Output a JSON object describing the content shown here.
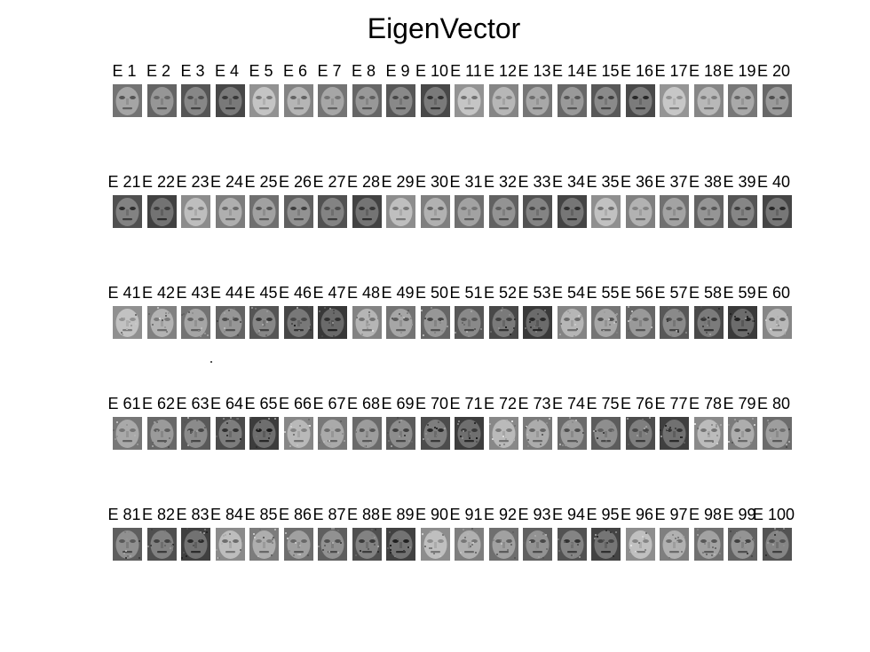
{
  "figure": {
    "title": "EigenVector",
    "label_prefix": "E ",
    "rows": 5,
    "columns": 20,
    "count": 100
  },
  "labels": [
    "E 1",
    "E 2",
    "E 3",
    "E 4",
    "E 5",
    "E 6",
    "E 7",
    "E 8",
    "E 9",
    "E 10",
    "E 11",
    "E 12",
    "E 13",
    "E 14",
    "E 15",
    "E 16",
    "E 17",
    "E 18",
    "E 19",
    "E 20",
    "E 21",
    "E 22",
    "E 23",
    "E 24",
    "E 25",
    "E 26",
    "E 27",
    "E 28",
    "E 29",
    "E 30",
    "E 31",
    "E 32",
    "E 33",
    "E 34",
    "E 35",
    "E 36",
    "E 37",
    "E 38",
    "E 39",
    "E 40",
    "E 41",
    "E 42",
    "E 43",
    "E 44",
    "E 45",
    "E 46",
    "E 47",
    "E 48",
    "E 49",
    "E 50",
    "E 51",
    "E 52",
    "E 53",
    "E 54",
    "E 55",
    "E 56",
    "E 57",
    "E 58",
    "E 59",
    "E 60",
    "E 61",
    "E 62",
    "E 63",
    "E 64",
    "E 65",
    "E 66",
    "E 67",
    "E 68",
    "E 69",
    "E 70",
    "E 71",
    "E 72",
    "E 73",
    "E 74",
    "E 75",
    "E 76",
    "E 77",
    "E 78",
    "E 79",
    "E 80",
    "E 81",
    "E 82",
    "E 83",
    "E 84",
    "E 85",
    "E 86",
    "E 87",
    "E 88",
    "E 89",
    "E 90",
    "E 91",
    "E 92",
    "E 93",
    "E 94",
    "E 95",
    "E 96",
    "E 97",
    "E 98",
    "E 99",
    "E 100"
  ],
  "colors": {
    "background": "#ffffff",
    "text": "#000000",
    "face_light": "#b4b4b4",
    "face_mid": "#808080",
    "face_dark": "#3a3a3a"
  }
}
